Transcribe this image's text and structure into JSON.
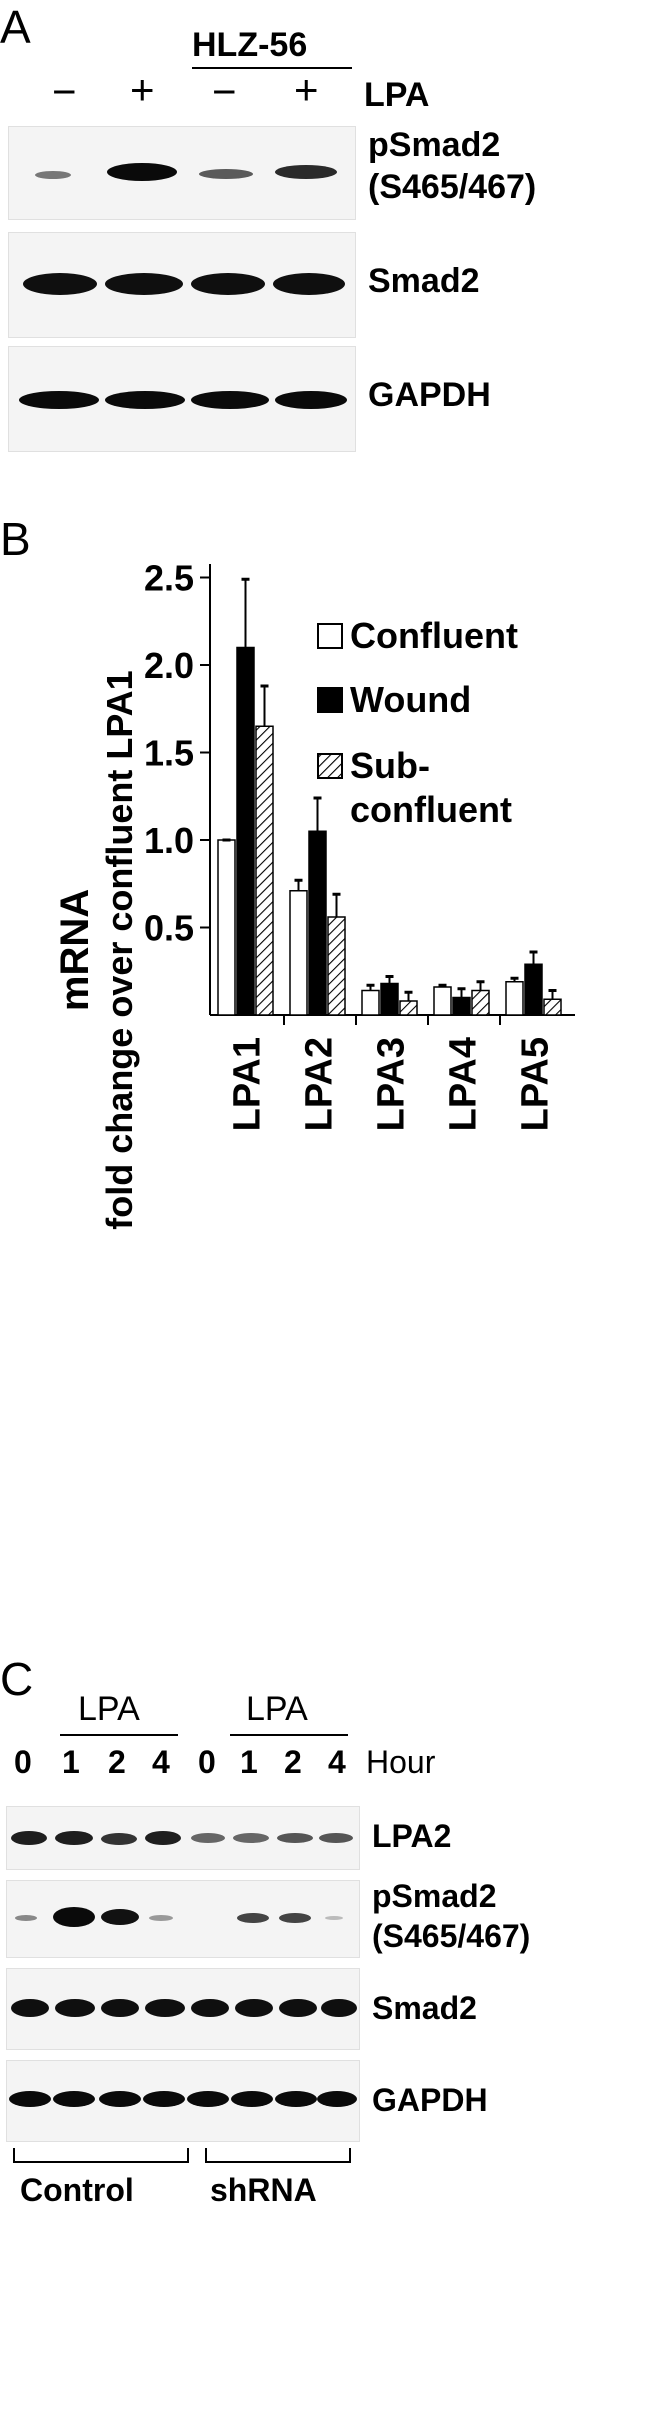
{
  "panel_a": {
    "letter": "A",
    "treatment_header": "HLZ-56",
    "lpa_signs": [
      "−",
      "+",
      "−",
      "+"
    ],
    "lpa_label": "LPA",
    "rows": [
      {
        "label_line1": "pSmad2",
        "label_line2": "(S465/467)"
      },
      {
        "label_line1": "Smad2",
        "label_line2": ""
      },
      {
        "label_line1": "GAPDH",
        "label_line2": ""
      }
    ]
  },
  "panel_b": {
    "letter": "B",
    "ylabel_line1": "mRNA",
    "ylabel_line2": "fold change over confluent LPA1",
    "legend": [
      {
        "line1": "Confluent",
        "line2": ""
      },
      {
        "line1": "Wound",
        "line2": ""
      },
      {
        "line1": "Sub-",
        "line2": "confluent"
      }
    ],
    "colors": {
      "confluent": "#ffffff",
      "wound": "#000000",
      "subconfluent": "hatched"
    }
  },
  "chart_data": {
    "type": "bar",
    "categories": [
      "LPA1",
      "LPA2",
      "LPA3",
      "LPA4",
      "LPA5"
    ],
    "series": [
      {
        "name": "Confluent",
        "values": [
          1.0,
          0.71,
          0.14,
          0.16,
          0.19
        ],
        "errors": [
          0.0,
          0.06,
          0.03,
          0.01,
          0.02
        ]
      },
      {
        "name": "Wound",
        "values": [
          2.1,
          1.05,
          0.18,
          0.1,
          0.29
        ],
        "errors": [
          0.39,
          0.19,
          0.04,
          0.05,
          0.07
        ]
      },
      {
        "name": "Sub-confluent",
        "values": [
          1.65,
          0.56,
          0.08,
          0.14,
          0.09
        ],
        "errors": [
          0.23,
          0.13,
          0.05,
          0.05,
          0.05
        ]
      }
    ],
    "yticks": [
      "0.5",
      "1.0",
      "1.5",
      "2.0",
      "2.5"
    ],
    "ylim": [
      0,
      2.6
    ],
    "legend_position": "top-right"
  },
  "panel_c": {
    "letter": "C",
    "lpa_group_label": "LPA",
    "hours": [
      "0",
      "1",
      "2",
      "4",
      "0",
      "1",
      "2",
      "4"
    ],
    "hour_label": "Hour",
    "rows": [
      {
        "label_line1": "LPA2",
        "label_line2": ""
      },
      {
        "label_line1": "pSmad2",
        "label_line2": "(S465/467)"
      },
      {
        "label_line1": "Smad2",
        "label_line2": ""
      },
      {
        "label_line1": "GAPDH",
        "label_line2": ""
      }
    ],
    "groups": [
      "Control",
      "shRNA"
    ]
  }
}
